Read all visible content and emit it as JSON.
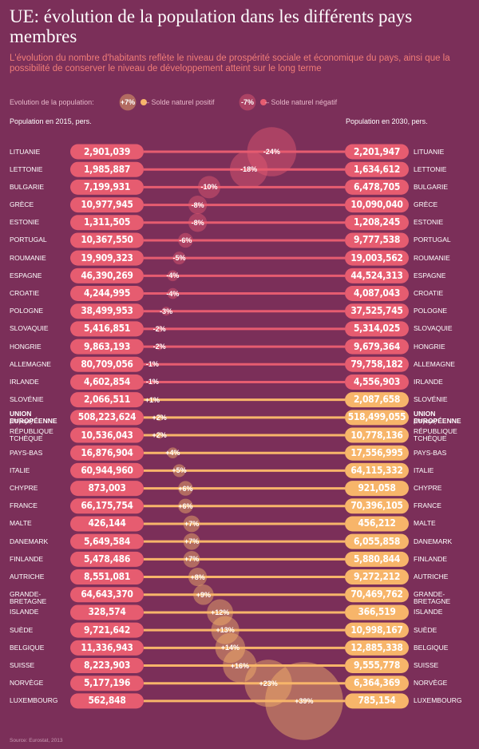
{
  "header": {
    "title": "UE: évolution de la population dans les différents pays membres",
    "subtitle": "L'évolution du nombre d'habitants reflète le niveau de prospérité sociale et économique du pays, ainsi que la possibilité de conserver le niveau de développement atteint sur le long terme"
  },
  "legend": {
    "title": "Evolution de la population:",
    "positive": {
      "value": 7,
      "label": "+7%",
      "text": "– Solde naturel positif"
    },
    "negative": {
      "value": -7,
      "label": "-7%",
      "text": "– Solde naturel négatif"
    }
  },
  "columns": {
    "left": "Population en 2015, pers.",
    "right": "Population en 2030, pers."
  },
  "rows": [
    {
      "country": "LITUANIE",
      "pop2015": "2,901,039",
      "pop2030": "2,201,947",
      "change": {
        "value": -24,
        "label": "-24%"
      }
    },
    {
      "country": "LETTONIE",
      "pop2015": "1,985,887",
      "pop2030": "1,634,612",
      "change": {
        "value": -18,
        "label": "-18%"
      }
    },
    {
      "country": "BULGARIE",
      "pop2015": "7,199,931",
      "pop2030": "6,478,705",
      "change": {
        "value": -10,
        "label": "-10%"
      }
    },
    {
      "country": "GRÈCE",
      "pop2015": "10,977,945",
      "pop2030": "10,090,040",
      "change": {
        "value": -8,
        "label": "-8%"
      }
    },
    {
      "country": "ESTONIE",
      "pop2015": "1,311,505",
      "pop2030": "1,208,245",
      "change": {
        "value": -8,
        "label": "-8%"
      }
    },
    {
      "country": "PORTUGAL",
      "pop2015": "10,367,550",
      "pop2030": "9,777,538",
      "change": {
        "value": -6,
        "label": "-6%"
      }
    },
    {
      "country": "ROUMANIE",
      "pop2015": "19,909,323",
      "pop2030": "19,003,562",
      "change": {
        "value": -5,
        "label": "-5%"
      }
    },
    {
      "country": "ESPAGNE",
      "pop2015": "46,390,269",
      "pop2030": "44,524,313",
      "change": {
        "value": -4,
        "label": "-4%"
      }
    },
    {
      "country": "CROATIE",
      "pop2015": "4,244,995",
      "pop2030": "4,087,043",
      "change": {
        "value": -4,
        "label": "-4%"
      }
    },
    {
      "country": "POLOGNE",
      "pop2015": "38,499,953",
      "pop2030": "37,525,745",
      "change": {
        "value": -3,
        "label": "-3%"
      }
    },
    {
      "country": "SLOVAQUIE",
      "pop2015": "5,416,851",
      "pop2030": "5,314,025",
      "change": {
        "value": -2,
        "label": "-2%"
      }
    },
    {
      "country": "HONGRIE",
      "pop2015": "9,863,193",
      "pop2030": "9,679,364",
      "change": {
        "value": -2,
        "label": "-2%"
      }
    },
    {
      "country": "ALLEMAGNE",
      "pop2015": "80,709,056",
      "pop2030": "79,758,182",
      "change": {
        "value": -1,
        "label": "-1%"
      }
    },
    {
      "country": "IRLANDE",
      "pop2015": "4,602,854",
      "pop2030": "4,556,903",
      "change": {
        "value": -1,
        "label": "-1%"
      }
    },
    {
      "country": "SLOVÉNIE",
      "pop2015": "2,066,511",
      "pop2030": "2,087,658",
      "change": {
        "value": 1,
        "label": "+1%"
      }
    },
    {
      "country": "UNION EUROPÉENNE",
      "note": "(28 pays)",
      "pop2015": "508,223,624",
      "pop2030": "518,499,055",
      "change": {
        "value": 2,
        "label": "+2%"
      }
    },
    {
      "country": "RÉPUBLIQUE TCHÈQUE",
      "pop2015": "10,536,043",
      "pop2030": "10,778,136",
      "change": {
        "value": 2,
        "label": "+2%"
      }
    },
    {
      "country": "PAYS-BAS",
      "pop2015": "16,876,904",
      "pop2030": "17,556,995",
      "change": {
        "value": 4,
        "label": "+4%"
      }
    },
    {
      "country": "ITALIE",
      "pop2015": "60,944,960",
      "pop2030": "64,115,332",
      "change": {
        "value": 5,
        "label": "+5%"
      }
    },
    {
      "country": "CHYPRE",
      "pop2015": "873,003",
      "pop2030": "921,058",
      "change": {
        "value": 6,
        "label": "+6%"
      }
    },
    {
      "country": "FRANCE",
      "pop2015": "66,175,754",
      "pop2030": "70,396,105",
      "change": {
        "value": 6,
        "label": "+6%"
      }
    },
    {
      "country": "MALTE",
      "pop2015": "426,144",
      "pop2030": "456,212",
      "change": {
        "value": 7,
        "label": "+7%"
      }
    },
    {
      "country": "DANEMARK",
      "pop2015": "5,649,584",
      "pop2030": "6,055,858",
      "change": {
        "value": 7,
        "label": "+7%"
      }
    },
    {
      "country": "FINLANDE",
      "pop2015": "5,478,486",
      "pop2030": "5,880,844",
      "change": {
        "value": 7,
        "label": "+7%"
      }
    },
    {
      "country": "AUTRICHE",
      "pop2015": "8,551,081",
      "pop2030": "9,272,212",
      "change": {
        "value": 8,
        "label": "+8%"
      }
    },
    {
      "country": "GRANDE-BRETAGNE",
      "pop2015": "64,643,370",
      "pop2030": "70,469,762",
      "change": {
        "value": 9,
        "label": "+9%"
      }
    },
    {
      "country": "ISLANDE",
      "pop2015": "328,574",
      "pop2030": "366,519",
      "change": {
        "value": 12,
        "label": "+12%"
      }
    },
    {
      "country": "SUÈDE",
      "pop2015": "9,721,642",
      "pop2030": "10,998,167",
      "change": {
        "value": 13,
        "label": "+13%"
      }
    },
    {
      "country": "BELGIQUE",
      "pop2015": "11,336,943",
      "pop2030": "12,885,338",
      "change": {
        "value": 14,
        "label": "+14%"
      }
    },
    {
      "country": "SUISSE",
      "pop2015": "8,223,903",
      "pop2030": "9,555,778",
      "change": {
        "value": 16,
        "label": "+16%"
      }
    },
    {
      "country": "NORVÈGE",
      "pop2015": "5,177,196",
      "pop2030": "6,364,369",
      "change": {
        "value": 23,
        "label": "+23%"
      }
    },
    {
      "country": "LUXEMBOURG",
      "pop2015": "562,848",
      "pop2030": "785,154",
      "change": {
        "value": 39,
        "label": "+39%"
      }
    }
  ],
  "source": "Source: Eurostat, 2013"
}
